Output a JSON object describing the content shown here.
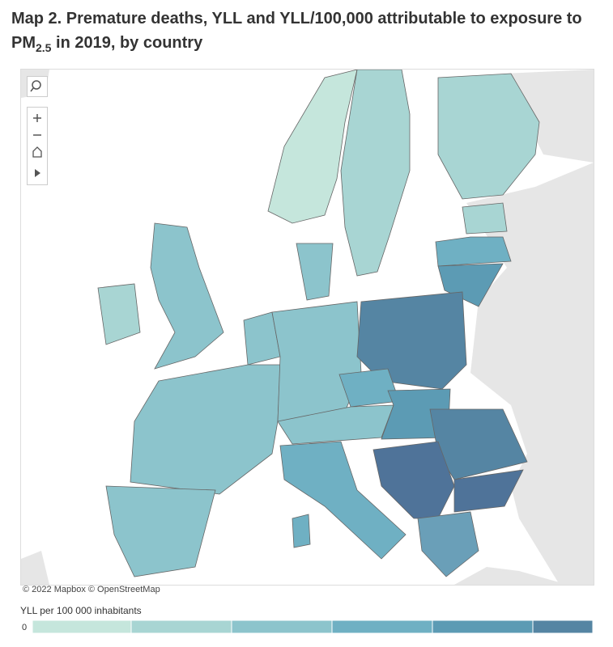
{
  "title": {
    "text": "Map 2. Premature deaths, YLL and YLL/100,000 attributable to exposure to PM",
    "subscript": "2.5",
    "suffix": " in 2019, by country"
  },
  "map": {
    "attribution": "© 2022 Mapbox © OpenStreetMap"
  },
  "legend": {
    "title": "YLL per 100 000 inhabitants",
    "low_label": "0",
    "colors": [
      "#c5e6dc",
      "#a8d5d3",
      "#8cc4cc",
      "#6fb0c3",
      "#5c9bb4",
      "#5585a3"
    ]
  }
}
